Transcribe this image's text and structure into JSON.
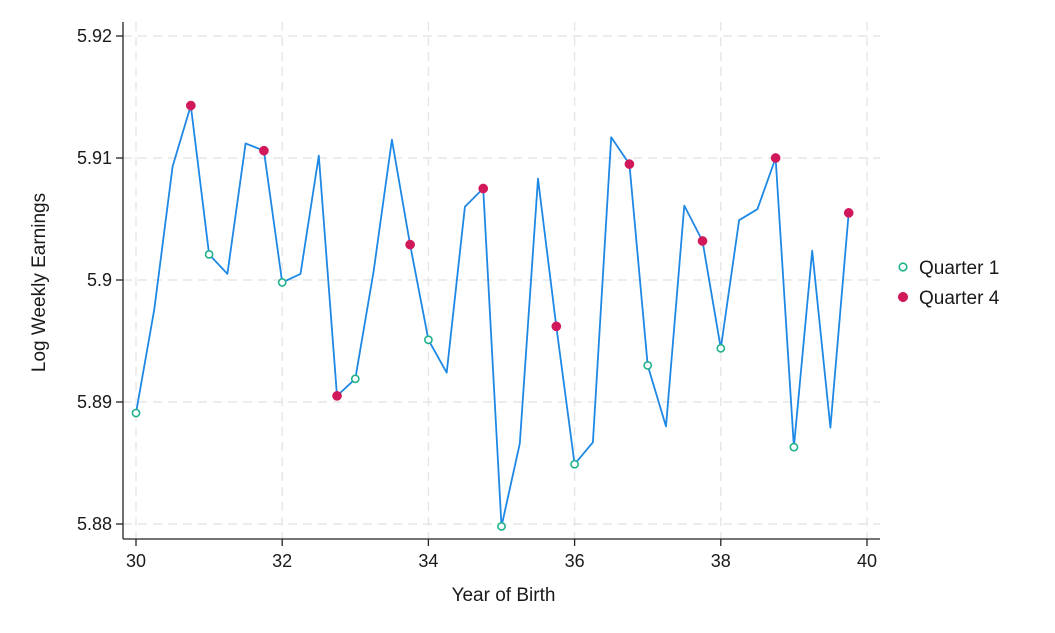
{
  "chart_data": {
    "type": "line",
    "xlabel": "Year of Birth",
    "ylabel": "Log Weekly Earnings",
    "xlim": [
      30,
      40
    ],
    "ylim": [
      5.88,
      5.92
    ],
    "xticks": [
      30,
      32,
      34,
      36,
      38,
      40
    ],
    "yticks": [
      5.88,
      5.89,
      5.9,
      5.91,
      5.92
    ],
    "xtick_labels": [
      "30",
      "32",
      "34",
      "36",
      "38",
      "40"
    ],
    "ytick_labels": [
      "5.88",
      "5.89",
      "5.9",
      "5.91",
      "5.92"
    ],
    "grid": true,
    "legend_position": "right",
    "line": {
      "color": "#1e88e5",
      "x": [
        30,
        30.25,
        30.5,
        30.75,
        31,
        31.25,
        31.5,
        31.75,
        32,
        32.25,
        32.5,
        32.75,
        33,
        33.25,
        33.5,
        33.75,
        34,
        34.25,
        34.5,
        34.75,
        35,
        35.25,
        35.5,
        35.75,
        36,
        36.25,
        36.5,
        36.75,
        37,
        37.25,
        37.5,
        37.75,
        38,
        38.25,
        38.5,
        38.75,
        39,
        39.25,
        39.5,
        39.75
      ],
      "y": [
        5.8891,
        5.8976,
        5.9093,
        5.9143,
        5.9021,
        5.9005,
        5.9112,
        5.9106,
        5.8998,
        5.9005,
        5.9102,
        5.8905,
        5.8919,
        5.9007,
        5.9115,
        5.9029,
        5.8951,
        5.8924,
        5.906,
        5.9075,
        5.8798,
        5.8866,
        5.9083,
        5.8962,
        5.8849,
        5.8867,
        5.9117,
        5.9095,
        5.893,
        5.888,
        5.9061,
        5.9032,
        5.8944,
        5.9049,
        5.9058,
        5.91,
        5.8863,
        5.9024,
        5.8879,
        5.9055
      ]
    },
    "series": [
      {
        "name": "Quarter 1",
        "marker": "hollow-circle",
        "color": "#1fb18a",
        "x": [
          30,
          31,
          32,
          33,
          34,
          35,
          36,
          37,
          38,
          39
        ],
        "y": [
          5.8891,
          5.9021,
          5.8998,
          5.8919,
          5.8951,
          5.8798,
          5.8849,
          5.893,
          5.8944,
          5.8863
        ]
      },
      {
        "name": "Quarter 4",
        "marker": "filled-circle",
        "color": "#d0185a",
        "x": [
          30.75,
          31.75,
          32.75,
          33.75,
          34.75,
          35.75,
          36.75,
          37.75,
          38.75,
          39.75
        ],
        "y": [
          5.9143,
          5.9106,
          5.8905,
          5.9029,
          5.9075,
          5.8962,
          5.9095,
          5.9032,
          5.91,
          5.9055
        ]
      }
    ]
  }
}
